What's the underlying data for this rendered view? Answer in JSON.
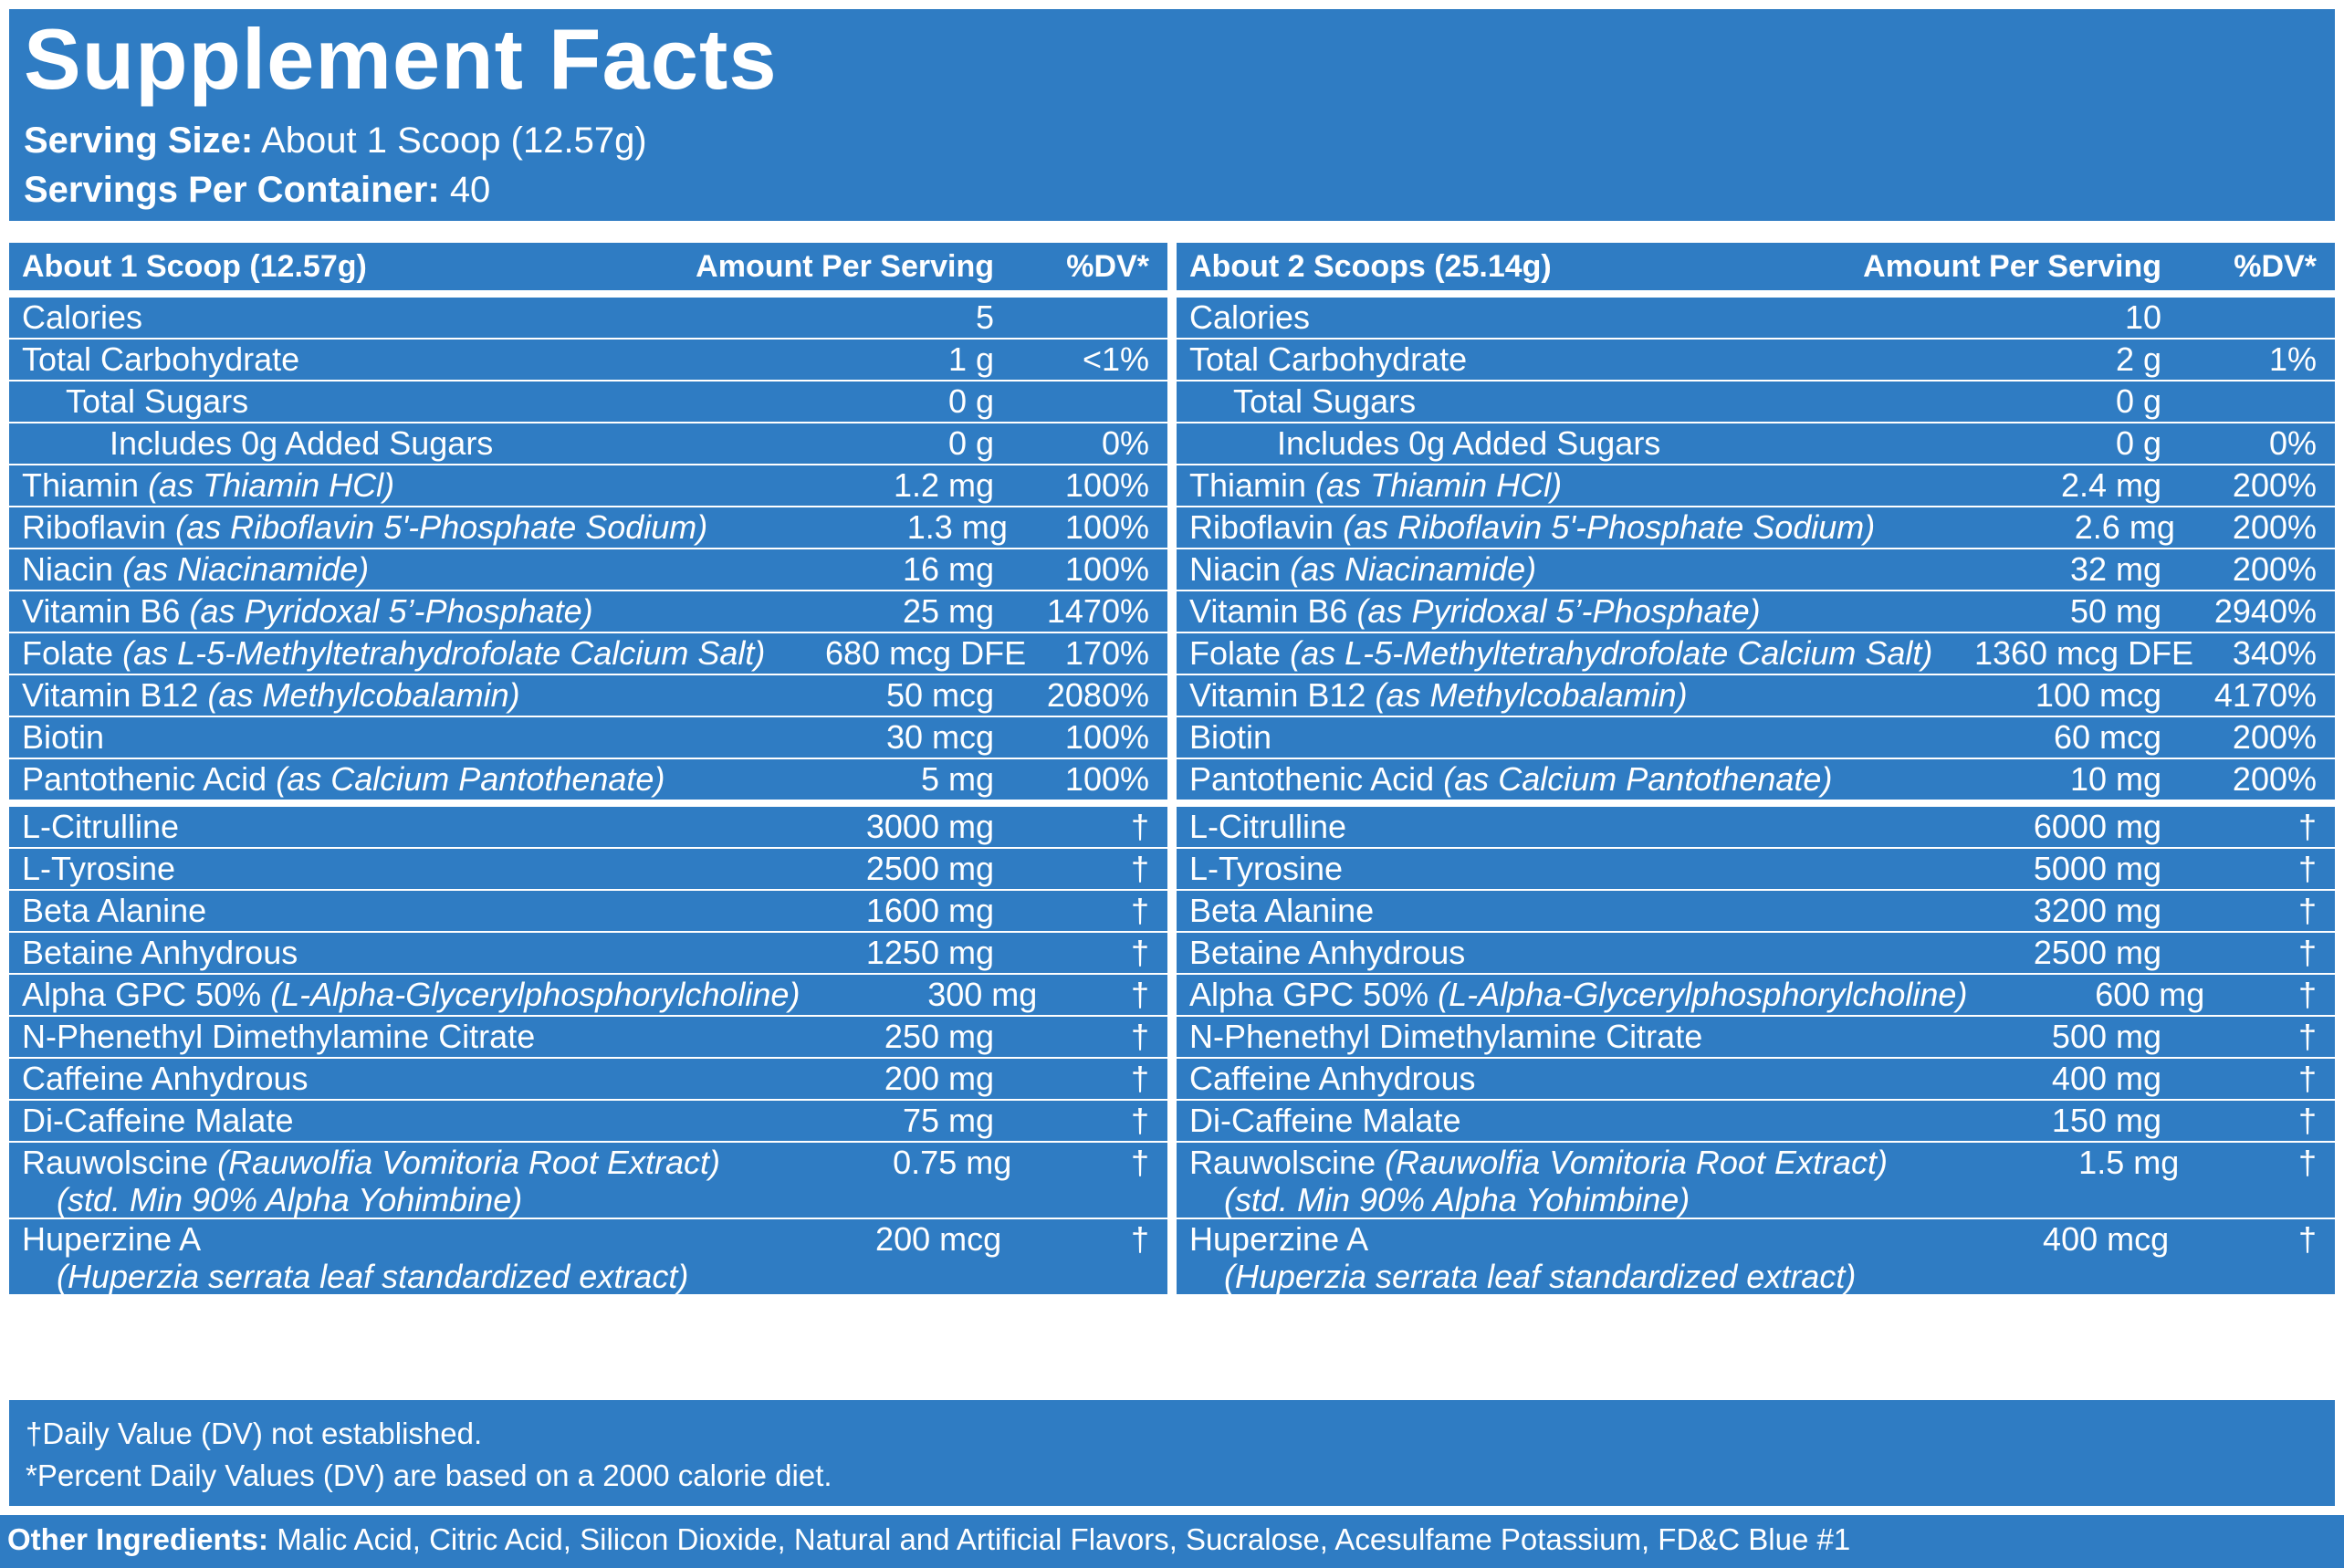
{
  "header": {
    "title": "Supplement Facts",
    "serving_size_label": "Serving Size:",
    "serving_size_value": "About 1 Scoop (12.57g)",
    "servings_per_label": "Servings Per Container:",
    "servings_per_value": "40"
  },
  "columns": [
    {
      "header": {
        "serving": "About 1 Scoop (12.57g)",
        "amount": "Amount Per Serving",
        "dv": "%DV*"
      },
      "vitamins": [
        {
          "name": "Calories",
          "form": "",
          "amount": "5",
          "dv": ""
        },
        {
          "name": "Total Carbohydrate",
          "form": "",
          "amount": "1 g",
          "dv": "<1%"
        },
        {
          "name": "Total Sugars",
          "form": "",
          "amount": "0 g",
          "dv": ""
        },
        {
          "name": "Includes 0g Added Sugars",
          "form": "",
          "amount": "0 g",
          "dv": "0%"
        },
        {
          "name": "Thiamin",
          "form": "(as Thiamin HCl)",
          "amount": "1.2 mg",
          "dv": "100%"
        },
        {
          "name": "Riboflavin",
          "form": "(as Riboflavin 5'-Phosphate Sodium)",
          "amount": "1.3 mg",
          "dv": "100%"
        },
        {
          "name": "Niacin",
          "form": "(as Niacinamide)",
          "amount": "16 mg",
          "dv": "100%"
        },
        {
          "name": "Vitamin B6",
          "form": "(as Pyridoxal 5’-Phosphate)",
          "amount": "25 mg",
          "dv": "1470%"
        },
        {
          "name": "Folate",
          "form": "(as L-5-Methyltetrahydrofolate Calcium Salt)",
          "amount": "680 mcg DFE",
          "dv": "170%"
        },
        {
          "name": "Vitamin B12",
          "form": "(as Methylcobalamin)",
          "amount": "50 mcg",
          "dv": "2080%"
        },
        {
          "name": "Biotin",
          "form": "",
          "amount": "30 mcg",
          "dv": "100%"
        },
        {
          "name": "Pantothenic Acid",
          "form": "(as Calcium Pantothenate)",
          "amount": "5 mg",
          "dv": "100%"
        }
      ],
      "ingredients": [
        {
          "name": "L-Citrulline",
          "form": "",
          "sub": "",
          "amount": "3000 mg",
          "dv": "†"
        },
        {
          "name": "L-Tyrosine",
          "form": "",
          "sub": "",
          "amount": "2500 mg",
          "dv": "†"
        },
        {
          "name": "Beta Alanine",
          "form": "",
          "sub": "",
          "amount": "1600 mg",
          "dv": "†"
        },
        {
          "name": "Betaine Anhydrous",
          "form": "",
          "sub": "",
          "amount": "1250 mg",
          "dv": "†"
        },
        {
          "name": "Alpha GPC 50%",
          "form": "(L-Alpha-Glycerylphosphorylcholine)",
          "sub": "",
          "amount": "300 mg",
          "dv": "†"
        },
        {
          "name": "N-Phenethyl Dimethylamine Citrate",
          "form": "",
          "sub": "",
          "amount": "250 mg",
          "dv": "†"
        },
        {
          "name": "Caffeine Anhydrous",
          "form": "",
          "sub": "",
          "amount": "200 mg",
          "dv": "†"
        },
        {
          "name": "Di-Caffeine Malate",
          "form": "",
          "sub": "",
          "amount": "75 mg",
          "dv": "†"
        },
        {
          "name": "Rauwolscine",
          "form": "(Rauwolfia Vomitoria Root Extract)",
          "sub": "(std. Min 90% Alpha Yohimbine)",
          "amount": "0.75 mg",
          "dv": "†"
        },
        {
          "name": "Huperzine A",
          "form": "",
          "sub": "(Huperzia serrata leaf standardized extract)",
          "amount": "200 mcg",
          "dv": "†"
        }
      ]
    },
    {
      "header": {
        "serving": "About 2 Scoops (25.14g)",
        "amount": "Amount Per Serving",
        "dv": "%DV*"
      },
      "vitamins": [
        {
          "name": "Calories",
          "form": "",
          "amount": "10",
          "dv": ""
        },
        {
          "name": "Total Carbohydrate",
          "form": "",
          "amount": "2 g",
          "dv": "1%"
        },
        {
          "name": "Total Sugars",
          "form": "",
          "amount": "0 g",
          "dv": ""
        },
        {
          "name": "Includes 0g Added Sugars",
          "form": "",
          "amount": "0 g",
          "dv": "0%"
        },
        {
          "name": "Thiamin",
          "form": "(as Thiamin HCl)",
          "amount": "2.4 mg",
          "dv": "200%"
        },
        {
          "name": "Riboflavin",
          "form": "(as Riboflavin 5'-Phosphate Sodium)",
          "amount": "2.6 mg",
          "dv": "200%"
        },
        {
          "name": "Niacin",
          "form": "(as Niacinamide)",
          "amount": "32 mg",
          "dv": "200%"
        },
        {
          "name": "Vitamin B6",
          "form": "(as Pyridoxal 5’-Phosphate)",
          "amount": "50 mg",
          "dv": "2940%"
        },
        {
          "name": "Folate",
          "form": "(as L-5-Methyltetrahydrofolate Calcium Salt)",
          "amount": "1360 mcg DFE",
          "dv": "340%"
        },
        {
          "name": "Vitamin B12",
          "form": "(as Methylcobalamin)",
          "amount": "100 mcg",
          "dv": "4170%"
        },
        {
          "name": "Biotin",
          "form": "",
          "amount": "60 mcg",
          "dv": "200%"
        },
        {
          "name": "Pantothenic Acid",
          "form": "(as Calcium Pantothenate)",
          "amount": "10 mg",
          "dv": "200%"
        }
      ],
      "ingredients": [
        {
          "name": "L-Citrulline",
          "form": "",
          "sub": "",
          "amount": "6000 mg",
          "dv": "†"
        },
        {
          "name": "L-Tyrosine",
          "form": "",
          "sub": "",
          "amount": "5000 mg",
          "dv": "†"
        },
        {
          "name": "Beta Alanine",
          "form": "",
          "sub": "",
          "amount": "3200 mg",
          "dv": "†"
        },
        {
          "name": "Betaine Anhydrous",
          "form": "",
          "sub": "",
          "amount": "2500 mg",
          "dv": "†"
        },
        {
          "name": "Alpha GPC 50%",
          "form": "(L-Alpha-Glycerylphosphorylcholine)",
          "sub": "",
          "amount": "600 mg",
          "dv": "†"
        },
        {
          "name": "N-Phenethyl Dimethylamine Citrate",
          "form": "",
          "sub": "",
          "amount": "500 mg",
          "dv": "†"
        },
        {
          "name": "Caffeine Anhydrous",
          "form": "",
          "sub": "",
          "amount": "400 mg",
          "dv": "†"
        },
        {
          "name": "Di-Caffeine Malate",
          "form": "",
          "sub": "",
          "amount": "150 mg",
          "dv": "†"
        },
        {
          "name": "Rauwolscine",
          "form": "(Rauwolfia Vomitoria Root Extract)",
          "sub": "(std. Min 90% Alpha Yohimbine)",
          "amount": "1.5 mg",
          "dv": "†"
        },
        {
          "name": "Huperzine A",
          "form": "",
          "sub": "(Huperzia serrata leaf standardized extract)",
          "amount": "400 mcg",
          "dv": "†"
        }
      ]
    }
  ],
  "footnotes": {
    "dagger": "†Daily Value (DV) not established.",
    "percent": "*Percent Daily Values (DV) are based on a 2000 calorie diet."
  },
  "other_ingredients": {
    "label": "Other Ingredients:",
    "text": "Malic Acid, Citric Acid, Silicon Dioxide, Natural and Artificial Flavors, Sucralose, Acesulfame Potassium, FD&C Blue #1"
  },
  "colors": {
    "panel": "#2f7cc3",
    "text": "#ffffff",
    "background": "#ffffff"
  }
}
